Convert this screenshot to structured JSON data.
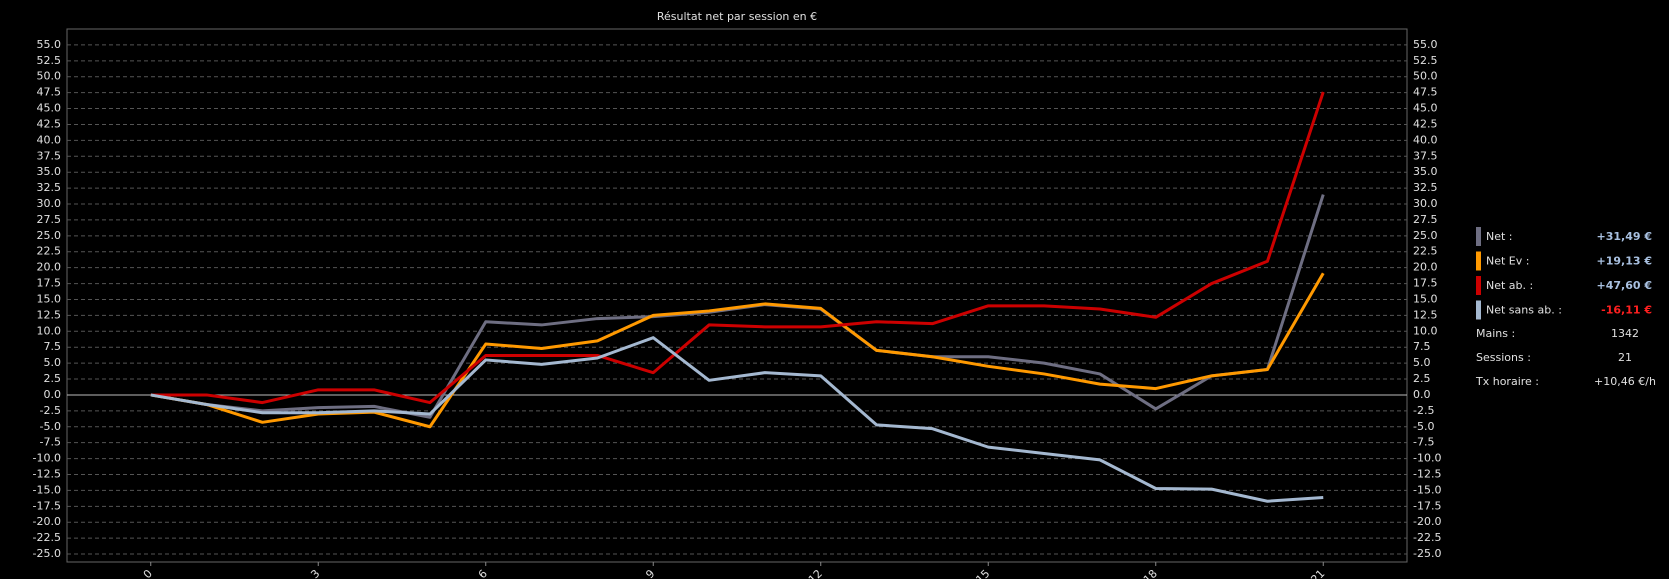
{
  "chart_data": {
    "type": "line",
    "title": "Résultat net par session en €",
    "x": [
      0,
      1,
      2,
      3,
      4,
      5,
      6,
      7,
      8,
      9,
      10,
      11,
      12,
      13,
      14,
      15,
      16,
      17,
      18,
      19,
      20,
      21
    ],
    "xlim": [
      -1.5,
      22.5
    ],
    "xticks": [
      0,
      3,
      6,
      9,
      12,
      15,
      18,
      21
    ],
    "ylim": [
      -26.25,
      57.5
    ],
    "yticks": [
      {
        "value": 55,
        "label": "55.0"
      },
      {
        "value": 52.5,
        "label": "52.5"
      },
      {
        "value": 50,
        "label": "50.0"
      },
      {
        "value": 47.5,
        "label": "47.5"
      },
      {
        "value": 45,
        "label": "45.0"
      },
      {
        "value": 42.5,
        "label": "42.5"
      },
      {
        "value": 40,
        "label": "40.0"
      },
      {
        "value": 37.5,
        "label": "37.5"
      },
      {
        "value": 35,
        "label": "35.0"
      },
      {
        "value": 32.5,
        "label": "32.5"
      },
      {
        "value": 30,
        "label": "30.0"
      },
      {
        "value": 27.5,
        "label": "27.5"
      },
      {
        "value": 25,
        "label": "25.0"
      },
      {
        "value": 22.5,
        "label": "22.5"
      },
      {
        "value": 20,
        "label": "20.0"
      },
      {
        "value": 17.5,
        "label": "17.5"
      },
      {
        "value": 15,
        "label": "15.0"
      },
      {
        "value": 12.5,
        "label": "12.5"
      },
      {
        "value": 10,
        "label": "10.0"
      },
      {
        "value": 7.5,
        "label": "7.5"
      },
      {
        "value": 5,
        "label": "5.0"
      },
      {
        "value": 2.5,
        "label": "2.5"
      },
      {
        "value": 0,
        "label": "0.0"
      },
      {
        "value": -2.5,
        "label": "-2.5"
      },
      {
        "value": -5,
        "label": "-5.0"
      },
      {
        "value": -7.5,
        "label": "-7.5"
      },
      {
        "value": -10,
        "label": "-10.0"
      },
      {
        "value": -12.5,
        "label": "-12.5"
      },
      {
        "value": -15,
        "label": "-15.0"
      },
      {
        "value": -17.5,
        "label": "-17.5"
      },
      {
        "value": -20,
        "label": "-20.0"
      },
      {
        "value": -22.5,
        "label": "-22.5"
      },
      {
        "value": -25,
        "label": "-25.0"
      }
    ],
    "grid": true,
    "series": [
      {
        "name": "Net :",
        "color": "#6e6e82",
        "summary": "+31,49 €",
        "summary_color": "#a8c0e0",
        "values": [
          0,
          -1.5,
          -2.5,
          -2,
          -1.8,
          -3.5,
          11.5,
          11,
          12,
          12.3,
          13,
          14.2,
          13.5,
          7,
          6,
          6,
          5,
          3.3,
          -2.2,
          3,
          4,
          31.49
        ]
      },
      {
        "name": "Net Ev :",
        "color": "#ff9900",
        "summary": "+19,13 €",
        "summary_color": "#a8c0e0",
        "values": [
          0,
          -1.5,
          -4.3,
          -3,
          -2.7,
          -5,
          8,
          7.3,
          8.5,
          12.5,
          13.2,
          14.3,
          13.6,
          7,
          6,
          4.5,
          3.3,
          1.7,
          1,
          3,
          4,
          19.13
        ]
      },
      {
        "name": "Net ab. :",
        "color": "#cc0000",
        "summary": "+47,60 €",
        "summary_color": "#a8c0e0",
        "values": [
          0,
          0,
          -1.2,
          0.8,
          0.8,
          -1.2,
          6.2,
          6.2,
          6.2,
          3.5,
          11,
          10.7,
          10.7,
          11.5,
          11.2,
          14,
          14,
          13.5,
          12.2,
          17.5,
          21,
          47.6
        ]
      },
      {
        "name": "Net sans ab. :",
        "color": "#a4b8d0",
        "summary": "-16,11 €",
        "summary_color": "#ff2020",
        "values": [
          0,
          -1.5,
          -2.8,
          -2.8,
          -2.5,
          -3,
          5.5,
          4.8,
          5.8,
          9,
          2.3,
          3.5,
          3,
          -4.7,
          -5.3,
          -8.2,
          -9.2,
          -10.2,
          -14.7,
          -14.8,
          -16.7,
          -16.11
        ]
      }
    ],
    "stats": [
      {
        "label": "Mains :",
        "value": "1342"
      },
      {
        "label": "Sessions :",
        "value": "21"
      },
      {
        "label": "Tx horaire :",
        "value": "+10,46 €/h"
      }
    ]
  }
}
